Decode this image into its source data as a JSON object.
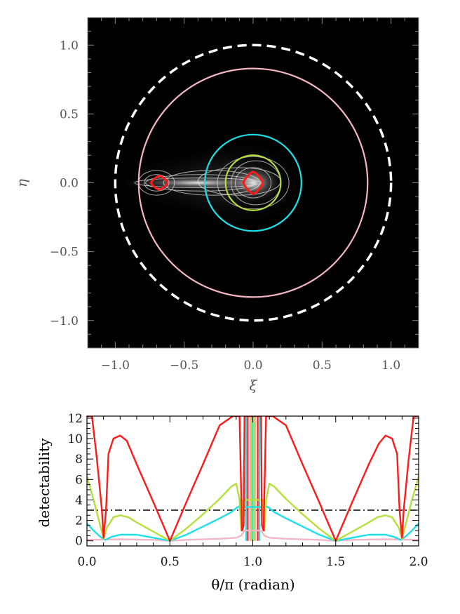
{
  "chart_data": [
    {
      "type": "contour",
      "xlabel": "ξ",
      "ylabel": "η",
      "xlim": [
        -1.2,
        1.2
      ],
      "ylim": [
        -1.2,
        1.2
      ],
      "xticks": [
        -1.0,
        -0.5,
        0.0,
        0.5,
        1.0
      ],
      "xtick_labels": [
        "−1.0",
        "−0.5",
        "0.0",
        "0.5",
        "1.0"
      ],
      "yticks": [
        -1.0,
        -0.5,
        0.0,
        0.5,
        1.0
      ],
      "ytick_labels": [
        "−1.0",
        "−0.5",
        "0.0",
        "0.5",
        "1.0"
      ],
      "background": "#000000",
      "circles": [
        {
          "name": "dashed",
          "radius": 1.0,
          "color": "#ffffff",
          "dashed": true
        },
        {
          "name": "pink",
          "radius": 0.83,
          "color": "#f4b6c2",
          "dashed": false
        },
        {
          "name": "cyan",
          "radius": 0.35,
          "color": "#1fe0e8",
          "dashed": false
        },
        {
          "name": "green",
          "radius": 0.2,
          "color": "#b4e03c",
          "dashed": false
        }
      ],
      "caustics": [
        {
          "name": "central-caustic",
          "center": [
            0.0,
            0.0
          ],
          "half_width": 0.07,
          "half_height": 0.08,
          "color": "#ff1a1a"
        },
        {
          "name": "planetary-caustic",
          "center": [
            -0.68,
            0.0
          ],
          "half_width": 0.06,
          "half_height": 0.05,
          "color": "#ff1a1a"
        }
      ],
      "contour_color": "#dddddd"
    },
    {
      "type": "line",
      "xlabel": "θ/π (radian)",
      "ylabel": "detectability",
      "xlim": [
        0.0,
        2.0
      ],
      "ylim": [
        -0.5,
        12.2
      ],
      "xticks": [
        0.0,
        0.5,
        1.0,
        1.5,
        2.0
      ],
      "xtick_labels": [
        "0.0",
        "0.5",
        "1.0",
        "1.5",
        "2.0"
      ],
      "yticks": [
        0,
        2,
        4,
        6,
        8,
        10,
        12
      ],
      "ytick_labels": [
        "0",
        "2",
        "4",
        "6",
        "8",
        "10",
        "12"
      ],
      "threshold": 3.0,
      "series": [
        {
          "color": "#ff1a1a",
          "x": [
            0.0,
            0.03,
            0.06,
            0.09,
            0.1,
            0.115,
            0.13,
            0.16,
            0.2,
            0.24,
            0.3,
            0.4,
            0.5,
            0.6,
            0.7,
            0.8,
            0.88,
            0.92,
            0.935,
            0.945,
            0.95,
            0.96,
            1.04,
            1.05,
            1.055,
            1.065,
            1.08,
            1.12,
            1.2,
            1.3,
            1.4,
            1.5,
            1.6,
            1.7,
            1.76,
            1.8,
            1.84,
            1.87,
            1.885,
            1.9,
            1.91,
            1.94,
            1.97,
            2.0
          ],
          "y": [
            12.2,
            12.2,
            8.0,
            3.0,
            0.3,
            3.0,
            8.5,
            10.0,
            10.3,
            9.8,
            7.5,
            3.8,
            0.0,
            3.8,
            7.5,
            11.3,
            12.2,
            12.2,
            1.0,
            1.5,
            12.2,
            12.2,
            12.2,
            12.2,
            1.5,
            1.0,
            12.2,
            12.2,
            11.3,
            7.5,
            3.8,
            0.0,
            3.8,
            7.5,
            9.5,
            10.3,
            10.0,
            8.5,
            3.0,
            0.3,
            3.0,
            8.0,
            12.2,
            12.2
          ]
        },
        {
          "color": "#b4e03c",
          "x": [
            0.0,
            0.04,
            0.08,
            0.1,
            0.12,
            0.16,
            0.2,
            0.25,
            0.3,
            0.4,
            0.5,
            0.6,
            0.7,
            0.8,
            0.87,
            0.9,
            0.92,
            0.93,
            0.94,
            1.06,
            1.07,
            1.08,
            1.1,
            1.13,
            1.2,
            1.3,
            1.4,
            1.5,
            1.6,
            1.7,
            1.75,
            1.8,
            1.84,
            1.88,
            1.9,
            1.92,
            1.96,
            2.0
          ],
          "y": [
            6.3,
            4.0,
            1.5,
            0.2,
            1.3,
            2.3,
            2.5,
            2.3,
            1.8,
            0.9,
            0.0,
            1.2,
            2.6,
            4.1,
            5.3,
            5.6,
            4.0,
            1.0,
            4.0,
            4.0,
            1.0,
            4.0,
            5.6,
            5.3,
            4.1,
            2.6,
            1.2,
            0.0,
            0.9,
            1.8,
            2.3,
            2.5,
            2.3,
            1.3,
            0.2,
            1.5,
            4.0,
            6.3
          ]
        },
        {
          "color": "#1fe0e8",
          "x": [
            0.0,
            0.04,
            0.08,
            0.11,
            0.15,
            0.2,
            0.3,
            0.4,
            0.5,
            0.6,
            0.7,
            0.8,
            0.87,
            0.9,
            0.92,
            0.93,
            0.94,
            1.06,
            1.07,
            1.08,
            1.1,
            1.13,
            1.2,
            1.3,
            1.4,
            1.5,
            1.6,
            1.7,
            1.8,
            1.85,
            1.89,
            1.92,
            1.96,
            2.0
          ],
          "y": [
            1.7,
            1.0,
            0.4,
            0.1,
            0.4,
            0.6,
            0.6,
            0.3,
            0.0,
            0.6,
            1.4,
            2.2,
            2.8,
            3.2,
            3.4,
            2.5,
            3.3,
            3.3,
            2.5,
            3.4,
            3.2,
            2.8,
            2.2,
            1.4,
            0.6,
            0.0,
            0.3,
            0.6,
            0.6,
            0.4,
            0.1,
            0.4,
            1.0,
            1.7
          ]
        },
        {
          "color": "#f4b6c2",
          "x": [
            0.0,
            0.2,
            0.4,
            0.5,
            0.6,
            0.8,
            0.9,
            0.93,
            0.95,
            1.05,
            1.07,
            1.1,
            1.2,
            1.4,
            1.5,
            1.6,
            1.8,
            2.0
          ],
          "y": [
            0.1,
            0.15,
            0.1,
            0.0,
            0.1,
            0.2,
            0.3,
            0.5,
            1.0,
            1.0,
            0.5,
            0.3,
            0.2,
            0.1,
            0.0,
            0.1,
            0.15,
            0.1
          ]
        }
      ],
      "spikes": [
        {
          "color": "#ff1a1a",
          "x": 0.97
        },
        {
          "color": "#ff1a1a",
          "x": 1.03
        },
        {
          "color": "#1fe0e8",
          "x": 0.96
        },
        {
          "color": "#1fe0e8",
          "x": 1.04
        },
        {
          "color": "#f4b6c2",
          "x": 0.985
        },
        {
          "color": "#f4b6c2",
          "x": 1.015
        },
        {
          "color": "#b4e03c",
          "x": 0.99
        },
        {
          "color": "#b4e03c",
          "x": 1.01
        },
        {
          "color": "#1fe0e8",
          "x": 1.0
        }
      ]
    }
  ]
}
